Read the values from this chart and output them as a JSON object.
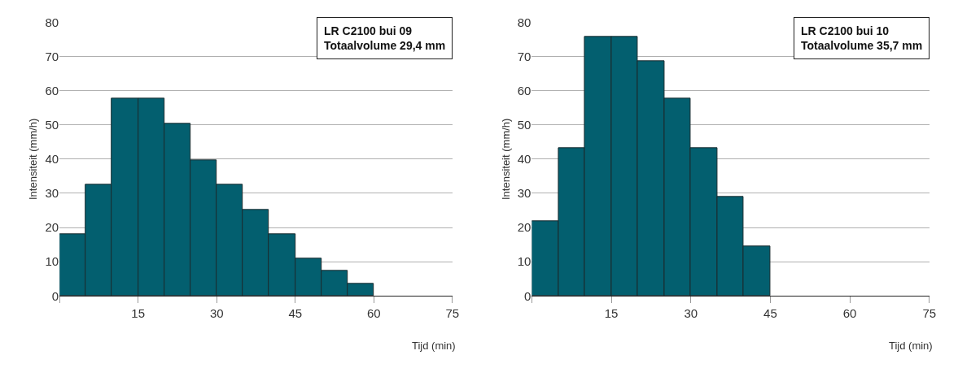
{
  "chart_data": [
    {
      "type": "histogram",
      "annotations": [
        "LR C2100 bui 09\nTotaalvolume 29,4 mm"
      ],
      "xlabel": "Tijd (min)",
      "ylabel": "Intensiteit (mm/h)",
      "bins": [
        0,
        5,
        10,
        15,
        20,
        25,
        30,
        35,
        40,
        45,
        50,
        55,
        60
      ],
      "values": [
        18,
        32.4,
        57.7,
        57.7,
        50.4,
        39.6,
        32.4,
        25.2,
        18,
        10.9,
        7.3,
        3.6
      ],
      "color": "#035f6f",
      "xlim": [
        0,
        75
      ],
      "xticks": [
        {
          "value": 0,
          "label": null
        },
        15,
        30,
        45,
        60,
        75
      ],
      "ylim": [
        0,
        80
      ],
      "yticks": [
        0,
        10,
        20,
        30,
        40,
        50,
        60,
        70,
        80
      ],
      "grid": "y"
    },
    {
      "type": "histogram",
      "annotations": [
        "LR C2100 bui 10\nTotaalvolume 35,7 mm"
      ],
      "xlabel": "Tijd (min)",
      "ylabel": "Intensiteit (mm/h)",
      "bins": [
        0,
        5,
        10,
        15,
        20,
        25,
        30,
        35,
        40,
        45
      ],
      "values": [
        21.8,
        43.3,
        75.7,
        75.7,
        68.5,
        57.8,
        43.3,
        29,
        14.5
      ],
      "color": "#035f6f",
      "xlim": [
        0,
        75
      ],
      "xticks": [
        {
          "value": 0,
          "label": null
        },
        15,
        30,
        45,
        60,
        75
      ],
      "ylim": [
        0,
        80
      ],
      "yticks": [
        0,
        10,
        20,
        30,
        40,
        50,
        60,
        70,
        80
      ],
      "grid": "y"
    }
  ]
}
